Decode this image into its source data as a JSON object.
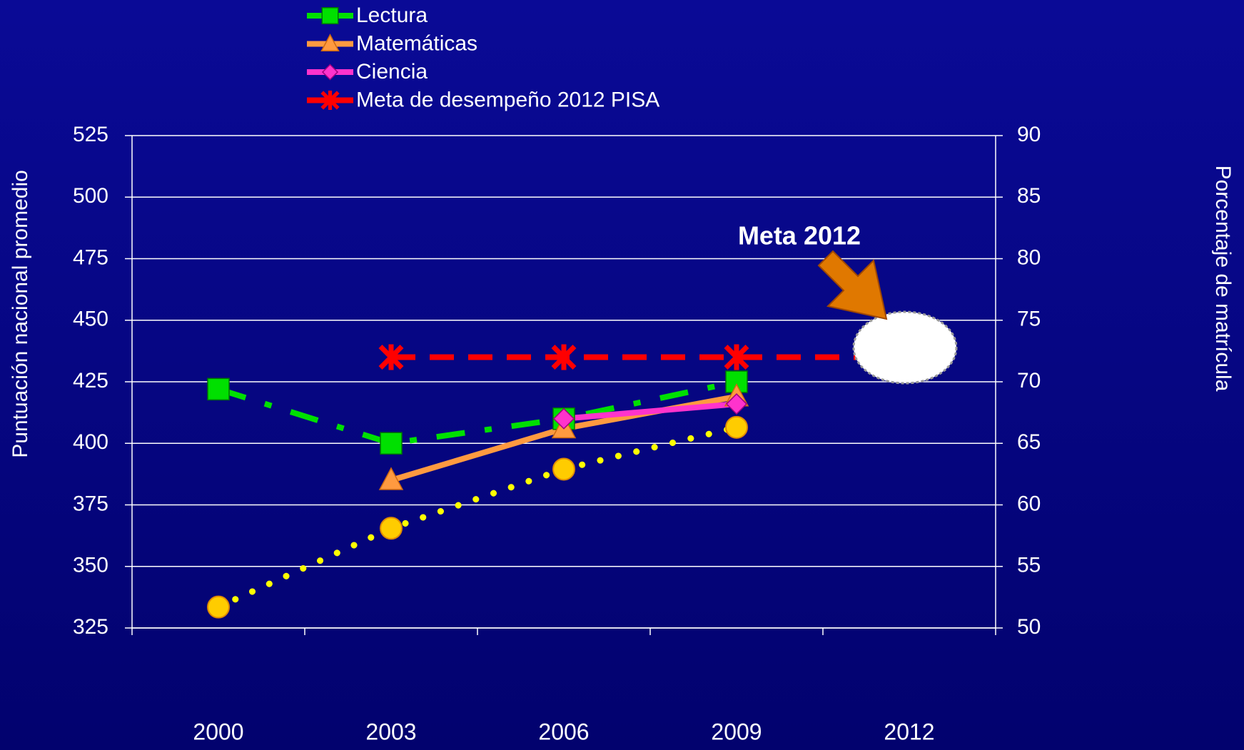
{
  "chart_data": {
    "type": "line",
    "categories": [
      "2000",
      "2003",
      "2006",
      "2009",
      "2012"
    ],
    "y_label": "Puntuación nacional promedio",
    "y2_label": "Porcentaje de matrícula",
    "annotation": "Meta 2012",
    "ylim": [
      325,
      525
    ],
    "yticks": [
      325,
      350,
      375,
      400,
      425,
      450,
      475,
      500,
      525
    ],
    "y2lim": [
      50,
      90
    ],
    "y2ticks": [
      50,
      55,
      60,
      65,
      70,
      75,
      80,
      85,
      90
    ],
    "grid": true,
    "legend": "top",
    "series": [
      {
        "name": "Lectura",
        "color": "#00e000",
        "line_style": "dashdot",
        "marker": "square",
        "values": [
          422,
          400,
          410,
          425,
          null
        ]
      },
      {
        "name": "Matemáticas",
        "color": "#ff9a40",
        "line_style": "solid",
        "marker": "triangle",
        "values": [
          null,
          385,
          406,
          419,
          null
        ]
      },
      {
        "name": "Ciencia",
        "color": "#ff33cc",
        "line_style": "solid",
        "marker": "diamond",
        "values": [
          null,
          null,
          410,
          416,
          null
        ]
      },
      {
        "name": "Meta de desempeño 2012 PISA",
        "color": "#ff0000",
        "line_style": "dashed",
        "marker": "asterisk",
        "values": [
          null,
          435,
          435,
          435,
          435
        ]
      },
      {
        "color": "#ffff00",
        "line_style": "dotted",
        "marker": "circle",
        "axis": "y2",
        "values": [
          51.7,
          58.1,
          62.9,
          66.3,
          null
        ]
      }
    ]
  }
}
